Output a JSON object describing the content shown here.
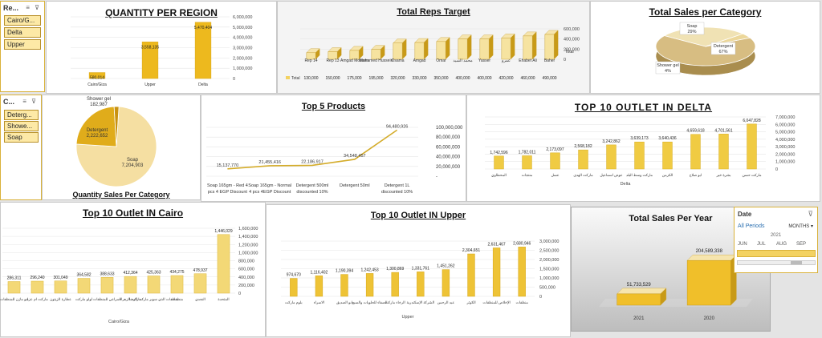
{
  "slicers": {
    "region": {
      "header": "Re...",
      "icons": "≡ ⊽",
      "items": [
        "Cairo/G...",
        "Delta",
        "Upper"
      ]
    },
    "category": {
      "header": "C...",
      "icons": "≡ ⊽",
      "items": [
        "Deterg...",
        "Showe...",
        "Soap"
      ]
    }
  },
  "timeline": {
    "header": "Date",
    "filter_icon": "⊽",
    "period": "All Periods",
    "level": "MONTHS",
    "level_icon": "▾",
    "year": "2021",
    "months": [
      "JUN",
      "JUL",
      "AUG",
      "SEP"
    ]
  },
  "colors": {
    "gold": "#e9bf2c",
    "light": "#f6e5ae",
    "dark": "#c89a17",
    "line": "#d4ac2a",
    "grid": "#e6e6e6",
    "slicer_border": "#d9b23a"
  },
  "chart_data": [
    {
      "type": "bar",
      "title": "QUANTITY PER REGION",
      "categories": [
        "Cairo/Giza",
        "Upper",
        "Delta"
      ],
      "values": [
        580014,
        3558135,
        5470404
      ],
      "value_labels": [
        "580,014",
        "3,558,135",
        "5,470,404"
      ],
      "yticks": [
        "6,000,000",
        "5,000,000",
        "4,000,000",
        "3,000,000",
        "2,000,000",
        "1,000,000",
        "0"
      ],
      "ylim": [
        0,
        6000000
      ]
    },
    {
      "type": "bar",
      "title": "Total Reps Target",
      "categories": [
        "Rep 14",
        "Rep 13",
        "Amgad Mohsen",
        "Mohamed Hussein",
        "Osama",
        "Amgad",
        "Omar",
        "محمد السيد",
        "Yasser",
        "عمرو",
        "Ehabet Ali",
        "Baher"
      ],
      "values": [
        130000,
        150000,
        175000,
        195000,
        320000,
        330000,
        350000,
        400000,
        400000,
        420000,
        460000,
        490000
      ],
      "value_labels": [
        "130,000",
        "150,000",
        "175,000",
        "195,000",
        "320,000",
        "330,000",
        "350,000",
        "400,000",
        "400,000",
        "420,000",
        "460,000",
        "490,000"
      ],
      "series": [
        {
          "name": "Total"
        }
      ],
      "legend_label": "Total",
      "yticks": [
        "600,000",
        "400,000",
        "200,000",
        "0"
      ],
      "ylim": [
        0,
        600000
      ]
    },
    {
      "type": "pie",
      "title": "Total Sales per Category",
      "slices": [
        {
          "label": "Detergent",
          "percent": 67,
          "text": "67%"
        },
        {
          "label": "Soap",
          "percent": 29,
          "text": "29%"
        },
        {
          "label": "Shower gel",
          "percent": 4,
          "text": "4%"
        }
      ]
    },
    {
      "type": "pie",
      "title": "Quantity Sales Per Category",
      "slices": [
        {
          "label": "Soap",
          "value": 7204903,
          "text": "7,204,903"
        },
        {
          "label": "Detergent",
          "value": 2222652,
          "text": "2,222,652"
        },
        {
          "label": "Shower gel",
          "value": 182987,
          "text": "182,987"
        }
      ]
    },
    {
      "type": "line",
      "title": "Top 5 Products",
      "categories": [
        "Soap 165gm - Red 4 pcs 4 EGP Discount",
        "Soap 165gm - Normal 4 pcs 4EGP Discount",
        "Detergent 500ml discounted 10%",
        "Detergent 50ml",
        "Detergent 1L discounted 10%"
      ],
      "values": [
        15137770,
        21455416,
        22186917,
        34548457,
        94480926
      ],
      "value_labels": [
        "15,137,770",
        "21,455,416",
        "22,186,917",
        "34,548,457",
        "94,480,926"
      ],
      "yticks": [
        "100,000,000",
        "80,000,000",
        "60,000,000",
        "40,000,000",
        "20,000,000",
        "-"
      ],
      "ylim": [
        0,
        100000000
      ]
    },
    {
      "type": "bar",
      "title": "TOP 10 OUTLET IN DELTA",
      "categories": [
        "المحطاوي",
        "منتجات",
        "عسل",
        "ماركت الهدى",
        "عوض اسماعيل",
        "ماركت وسط البلد",
        "الكرمن",
        "ابو صلاح",
        "بشرة خير",
        "ماركت حسن"
      ],
      "values": [
        1742596,
        1782011,
        2173097,
        2568182,
        3242862,
        3639173,
        3640436,
        4659618,
        4701561,
        6047828
      ],
      "value_labels": [
        "1,742,596",
        "1,782,011",
        "2,173,097",
        "2,568,182",
        "3,242,862",
        "3,639,173",
        "3,640,436",
        "4,659,618",
        "4,701,561",
        "6,047,828"
      ],
      "xlabel": "Delta",
      "yticks": [
        "7,000,000",
        "6,000,000",
        "5,000,000",
        "4,000,000",
        "3,000,000",
        "2,000,000",
        "1,000,000",
        "0"
      ],
      "ylim": [
        0,
        7000000
      ]
    },
    {
      "type": "bar",
      "title": "Top 10 Outlet IN Cairo",
      "categories": [
        "ابو مازن للمنظفات",
        "ماركت ام عزة",
        "عطارة الزيتون",
        "لولو ماركت",
        "المراعي للمنظفات",
        "ماركت الزهراء",
        "منظفات الذي سوبر ماركت الرضا",
        "منظفات",
        "النجدي",
        "المتحدة"
      ],
      "values": [
        286311,
        296240,
        301049,
        364582,
        388633,
        412364,
        425363,
        434275,
        478937,
        1446029
      ],
      "value_labels": [
        "286,311",
        "296,240",
        "301,049",
        "364,582",
        "388,633",
        "412,364",
        "425,363",
        "434,275",
        "478,937",
        "1,446,029"
      ],
      "xlabel": "Cairo/Giza",
      "yticks": [
        "1,600,000",
        "1,400,000",
        "1,200,000",
        "1,000,000",
        "800,000",
        "600,000",
        "400,000",
        "200,000",
        "0"
      ],
      "ylim": [
        0,
        1600000
      ]
    },
    {
      "type": "bar",
      "title": "Top 10 Outlet IN Upper",
      "categories": [
        "بلوم ماركت",
        "الاسراء",
        "ابو الصديق",
        "الصفاء للحلويات والسبع",
        "الرخاء ماركت",
        "الشركة الإسكندرية",
        "عبد الرحمن",
        "الكوثر",
        "الإخلاص للمنظفات",
        "منظفات"
      ],
      "values": [
        974670,
        1116402,
        1190394,
        1242453,
        1300869,
        1331761,
        1451262,
        2304651,
        2631467,
        2680946
      ],
      "value_labels": [
        "974,670",
        "1,116,402",
        "1,190,394",
        "1,242,453",
        "1,300,869",
        "1,331,761",
        "1,451,262",
        "2,304,651",
        "2,631,467",
        "2,680,946"
      ],
      "xlabel": "Upper",
      "yticks": [
        "3,000,000",
        "2,500,000",
        "2,000,000",
        "1,500,000",
        "1,000,000",
        "500,000",
        "0"
      ],
      "ylim": [
        0,
        3000000
      ]
    },
    {
      "type": "bar",
      "title": "Total Sales Per Year",
      "categories": [
        "2021",
        "2020"
      ],
      "values": [
        51733529,
        204589338
      ],
      "value_labels": [
        "51,733,529",
        "204,589,338"
      ],
      "ylim": [
        0,
        220000000
      ]
    }
  ]
}
